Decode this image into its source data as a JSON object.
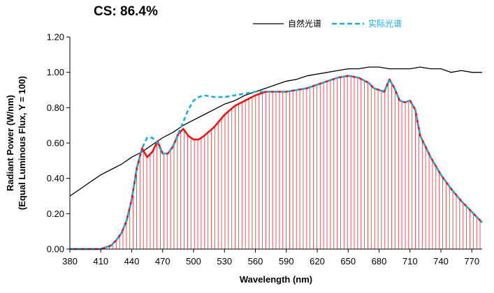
{
  "header": {
    "cs_label": "CS: 86.4%"
  },
  "chart_data": {
    "type": "line",
    "xlabel": "Wavelength (nm)",
    "ylabel_lines": [
      "Radiant Power (W/nm)",
      "(Equal Luminous Flux, Y = 100)"
    ],
    "xlim": [
      380,
      780
    ],
    "ylim": [
      0,
      1.2
    ],
    "xticks": [
      380,
      410,
      440,
      470,
      500,
      530,
      560,
      590,
      620,
      650,
      680,
      710,
      740,
      770
    ],
    "yticks": [
      "0.00",
      "0.20",
      "0.40",
      "0.60",
      "0.80",
      "1.00",
      "1.20"
    ],
    "grid": false,
    "legend_position": "top-right",
    "series": [
      {
        "name": "自然光谱",
        "color": "#000000",
        "style": "solid",
        "points": [
          [
            380,
            0.3
          ],
          [
            390,
            0.34
          ],
          [
            400,
            0.38
          ],
          [
            410,
            0.42
          ],
          [
            420,
            0.45
          ],
          [
            430,
            0.48
          ],
          [
            440,
            0.52
          ],
          [
            450,
            0.55
          ],
          [
            460,
            0.59
          ],
          [
            470,
            0.63
          ],
          [
            480,
            0.66
          ],
          [
            490,
            0.7
          ],
          [
            500,
            0.73
          ],
          [
            510,
            0.76
          ],
          [
            520,
            0.79
          ],
          [
            530,
            0.82
          ],
          [
            540,
            0.84
          ],
          [
            550,
            0.87
          ],
          [
            560,
            0.89
          ],
          [
            570,
            0.91
          ],
          [
            580,
            0.93
          ],
          [
            590,
            0.95
          ],
          [
            600,
            0.96
          ],
          [
            610,
            0.98
          ],
          [
            620,
            0.99
          ],
          [
            630,
            1.0
          ],
          [
            640,
            1.01
          ],
          [
            650,
            1.02
          ],
          [
            660,
            1.02
          ],
          [
            670,
            1.03
          ],
          [
            680,
            1.03
          ],
          [
            690,
            1.02
          ],
          [
            700,
            1.02
          ],
          [
            710,
            1.02
          ],
          [
            720,
            1.03
          ],
          [
            730,
            1.02
          ],
          [
            740,
            1.02
          ],
          [
            750,
            1.0
          ],
          [
            760,
            1.01
          ],
          [
            770,
            1.0
          ],
          [
            780,
            1.0
          ]
        ]
      },
      {
        "name": "",
        "color": "#ee1111",
        "style": "solid-thick",
        "points": [
          [
            380,
            0.0
          ],
          [
            400,
            0.0
          ],
          [
            410,
            0.0
          ],
          [
            415,
            0.01
          ],
          [
            420,
            0.02
          ],
          [
            425,
            0.05
          ],
          [
            430,
            0.09
          ],
          [
            435,
            0.16
          ],
          [
            440,
            0.28
          ],
          [
            445,
            0.46
          ],
          [
            450,
            0.57
          ],
          [
            455,
            0.52
          ],
          [
            460,
            0.55
          ],
          [
            465,
            0.61
          ],
          [
            470,
            0.54
          ],
          [
            475,
            0.54
          ],
          [
            480,
            0.58
          ],
          [
            485,
            0.65
          ],
          [
            490,
            0.68
          ],
          [
            495,
            0.64
          ],
          [
            500,
            0.62
          ],
          [
            505,
            0.62
          ],
          [
            510,
            0.64
          ],
          [
            520,
            0.69
          ],
          [
            530,
            0.76
          ],
          [
            540,
            0.81
          ],
          [
            550,
            0.84
          ],
          [
            560,
            0.87
          ],
          [
            570,
            0.89
          ],
          [
            580,
            0.89
          ],
          [
            590,
            0.89
          ],
          [
            600,
            0.9
          ],
          [
            610,
            0.91
          ],
          [
            620,
            0.93
          ],
          [
            630,
            0.95
          ],
          [
            640,
            0.97
          ],
          [
            650,
            0.98
          ],
          [
            660,
            0.97
          ],
          [
            670,
            0.94
          ],
          [
            675,
            0.91
          ],
          [
            680,
            0.9
          ],
          [
            685,
            0.89
          ],
          [
            690,
            0.96
          ],
          [
            695,
            0.91
          ],
          [
            700,
            0.84
          ],
          [
            705,
            0.83
          ],
          [
            710,
            0.84
          ],
          [
            715,
            0.79
          ],
          [
            720,
            0.64
          ],
          [
            730,
            0.52
          ],
          [
            740,
            0.42
          ],
          [
            750,
            0.34
          ],
          [
            760,
            0.27
          ],
          [
            770,
            0.21
          ],
          [
            780,
            0.15
          ]
        ]
      },
      {
        "name": "实际光谱",
        "color": "#22aadd",
        "style": "dashed",
        "points": [
          [
            380,
            0.0
          ],
          [
            400,
            0.0
          ],
          [
            410,
            0.0
          ],
          [
            415,
            0.01
          ],
          [
            420,
            0.02
          ],
          [
            425,
            0.05
          ],
          [
            430,
            0.09
          ],
          [
            435,
            0.16
          ],
          [
            440,
            0.28
          ],
          [
            445,
            0.46
          ],
          [
            450,
            0.57
          ],
          [
            455,
            0.63
          ],
          [
            460,
            0.63
          ],
          [
            465,
            0.6
          ],
          [
            470,
            0.54
          ],
          [
            475,
            0.54
          ],
          [
            480,
            0.58
          ],
          [
            485,
            0.65
          ],
          [
            490,
            0.72
          ],
          [
            495,
            0.79
          ],
          [
            500,
            0.84
          ],
          [
            505,
            0.86
          ],
          [
            510,
            0.87
          ],
          [
            520,
            0.86
          ],
          [
            530,
            0.86
          ],
          [
            540,
            0.87
          ],
          [
            550,
            0.88
          ],
          [
            560,
            0.89
          ],
          [
            570,
            0.89
          ],
          [
            580,
            0.89
          ],
          [
            590,
            0.89
          ],
          [
            600,
            0.9
          ],
          [
            610,
            0.91
          ],
          [
            620,
            0.93
          ],
          [
            630,
            0.95
          ],
          [
            640,
            0.97
          ],
          [
            650,
            0.98
          ],
          [
            660,
            0.97
          ],
          [
            670,
            0.94
          ],
          [
            675,
            0.91
          ],
          [
            680,
            0.9
          ],
          [
            685,
            0.89
          ],
          [
            690,
            0.96
          ],
          [
            695,
            0.91
          ],
          [
            700,
            0.84
          ],
          [
            705,
            0.83
          ],
          [
            710,
            0.84
          ],
          [
            715,
            0.79
          ],
          [
            720,
            0.64
          ],
          [
            730,
            0.52
          ],
          [
            740,
            0.42
          ],
          [
            750,
            0.34
          ],
          [
            760,
            0.27
          ],
          [
            770,
            0.21
          ],
          [
            780,
            0.15
          ]
        ]
      }
    ]
  }
}
